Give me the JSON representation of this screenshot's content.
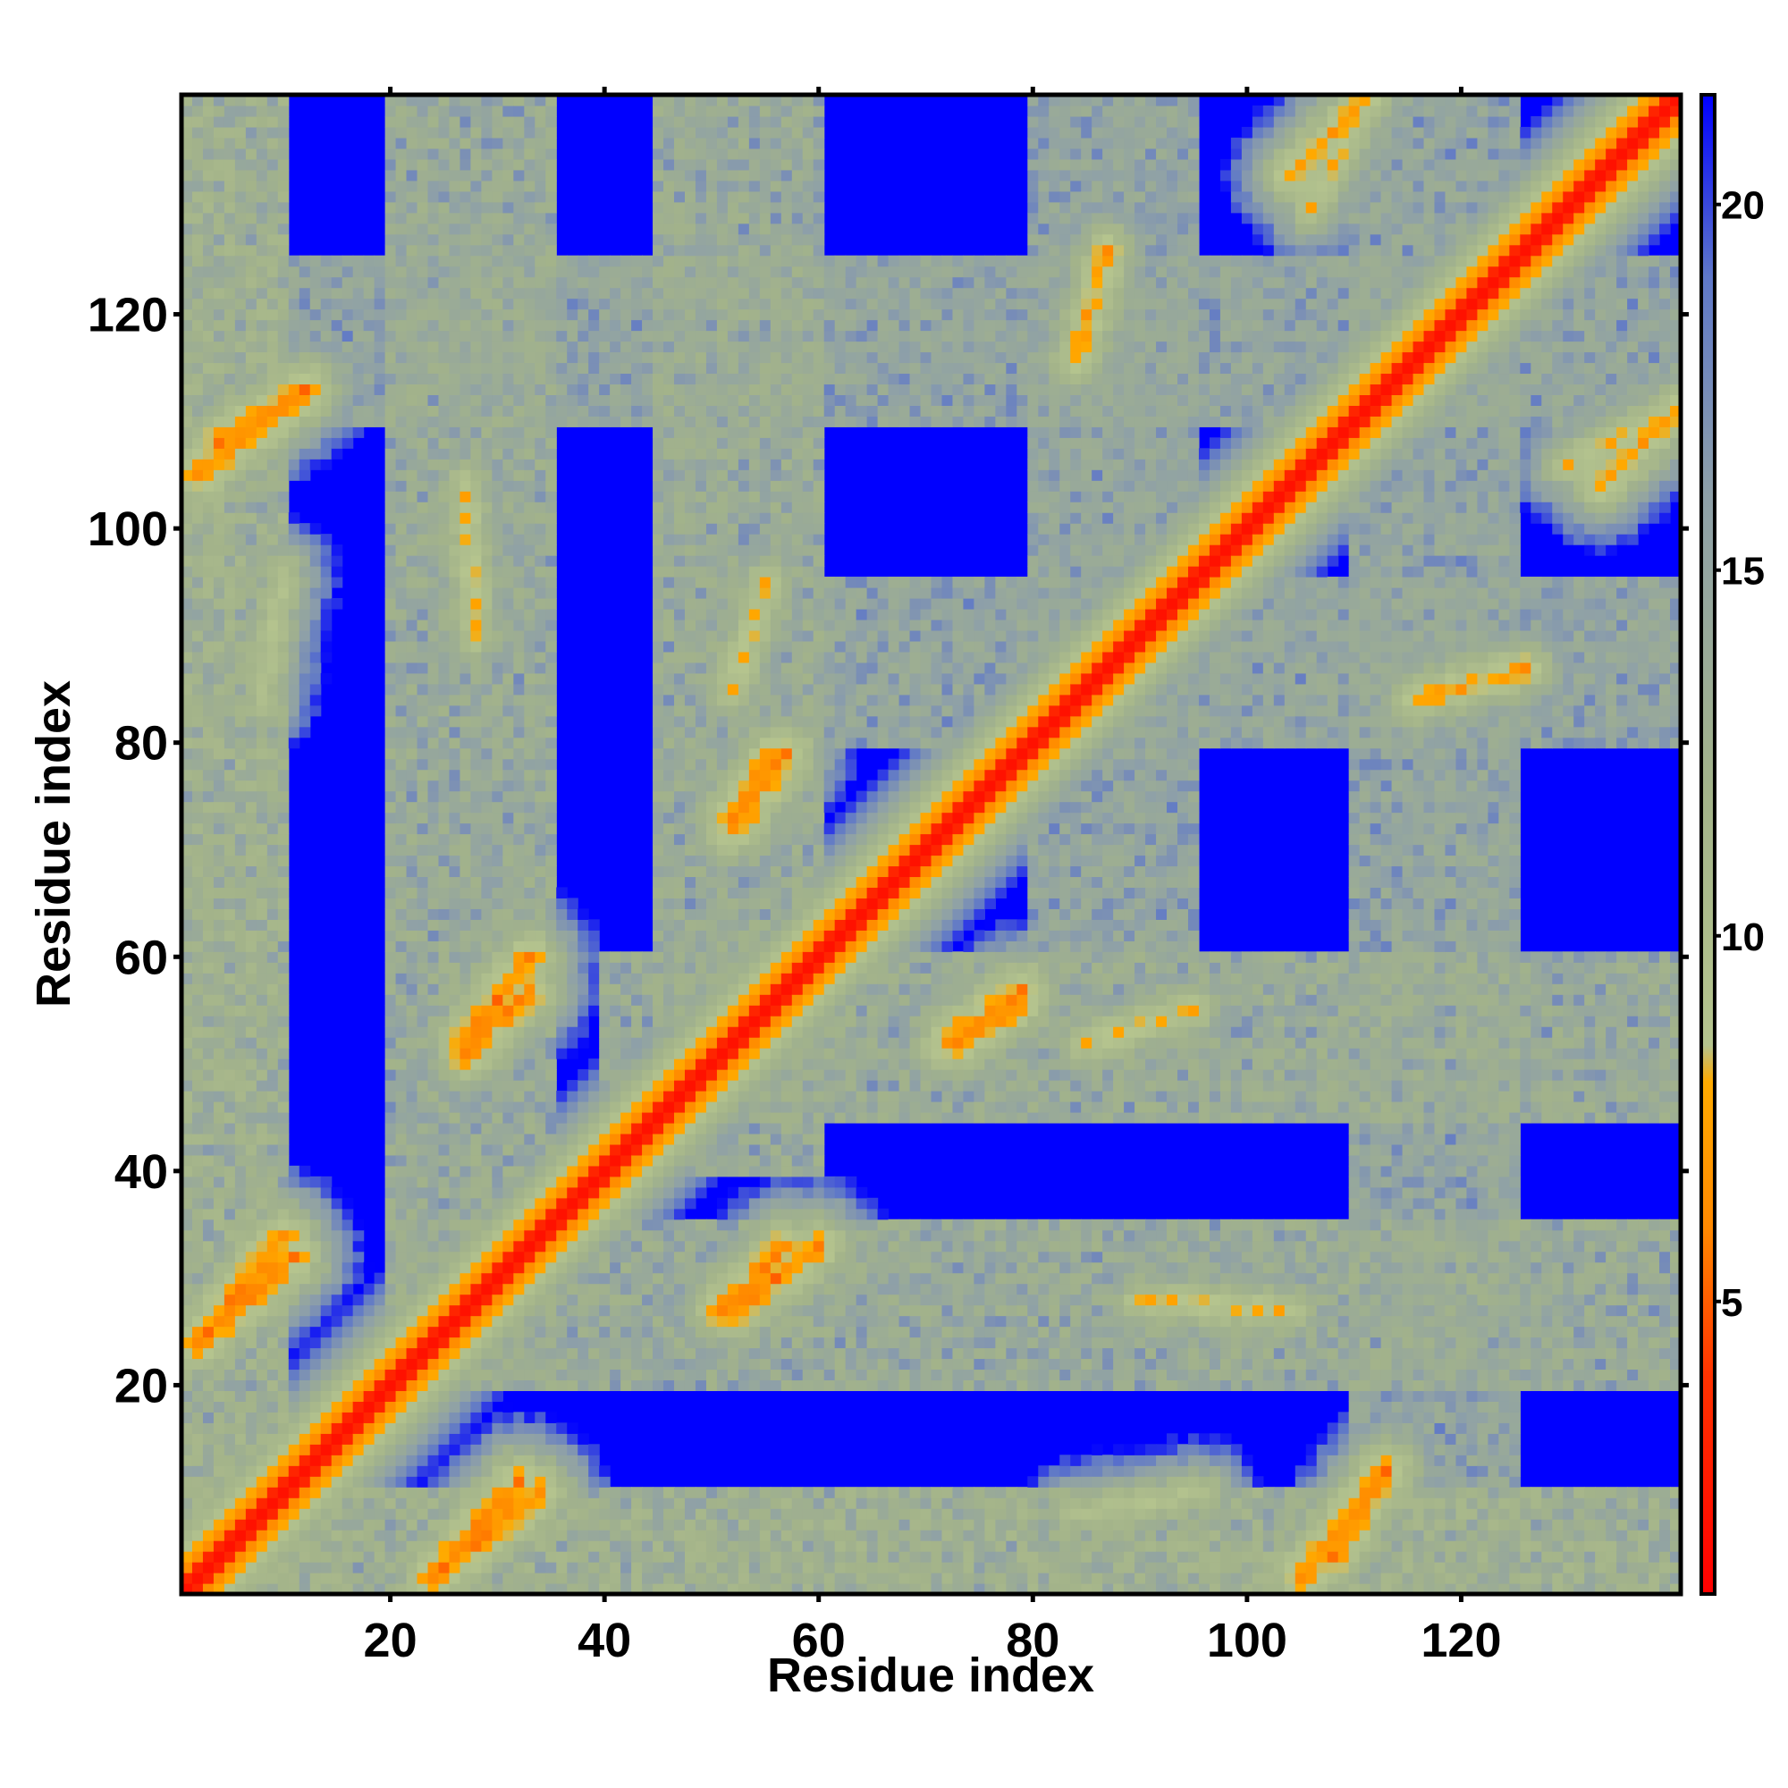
{
  "chart_data": {
    "type": "heatmap",
    "title": "",
    "xlabel": "Residue index",
    "ylabel": "Residue index",
    "n_residues": 140,
    "xlim": [
      1,
      140
    ],
    "ylim": [
      1,
      140
    ],
    "x_ticks": [
      20,
      40,
      60,
      80,
      100,
      120
    ],
    "y_ticks": [
      20,
      40,
      60,
      80,
      100,
      120
    ],
    "x_tick_labels": [
      "20",
      "40",
      "60",
      "80",
      "100",
      "120"
    ],
    "y_tick_labels": [
      "20",
      "40",
      "60",
      "80",
      "100",
      "120"
    ],
    "colorbar": {
      "range": [
        1,
        21.5
      ],
      "ticks": [
        5,
        10,
        15,
        20
      ],
      "tick_labels": [
        "5",
        "10",
        "15",
        "20"
      ],
      "colors": [
        {
          "value": 1,
          "color": "#ff0000"
        },
        {
          "value": 4,
          "color": "#ff3300"
        },
        {
          "value": 6,
          "color": "#ff8800"
        },
        {
          "value": 8,
          "color": "#ffaa00"
        },
        {
          "value": 8.5,
          "color": "#b5c48e"
        },
        {
          "value": 12,
          "color": "#a3b38a"
        },
        {
          "value": 16,
          "color": "#8ea0a8"
        },
        {
          "value": 19,
          "color": "#5f78c8"
        },
        {
          "value": 21.5,
          "color": "#0000ff"
        }
      ]
    },
    "contact_bands": [
      {
        "p": [
          4,
          108
        ],
        "q": [
          12,
          113
        ],
        "value": 6
      },
      {
        "p": [
          2,
          24
        ],
        "q": [
          10,
          34
        ],
        "value": 6
      },
      {
        "p": [
          24,
          2
        ],
        "q": [
          32,
          11
        ],
        "value": 6
      },
      {
        "p": [
          105,
          2
        ],
        "q": [
          113,
          12
        ],
        "value": 6
      },
      {
        "p": [
          52,
          27
        ],
        "q": [
          60,
          33
        ],
        "value": 6
      },
      {
        "p": [
          27,
          51
        ],
        "q": [
          33,
          57
        ],
        "value": 6
      },
      {
        "p": [
          52,
          72
        ],
        "q": [
          57,
          79
        ],
        "value": 6
      },
      {
        "p": [
          73,
          52
        ],
        "q": [
          79,
          56
        ],
        "value": 6
      },
      {
        "p": [
          116,
          84
        ],
        "q": [
          126,
          87
        ],
        "value": 7
      },
      {
        "p": [
          133,
          104
        ],
        "q": [
          140,
          111
        ],
        "value": 7
      },
      {
        "p": [
          85,
          52
        ],
        "q": [
          95,
          55
        ],
        "value": 8
      },
      {
        "p": [
          90,
          28
        ],
        "q": [
          104,
          27
        ],
        "value": 8
      },
      {
        "p": [
          106,
          130
        ],
        "q": [
          110,
          138
        ],
        "value": 8
      },
      {
        "p": [
          8,
          84
        ],
        "q": [
          10,
          96
        ],
        "value": 9
      }
    ],
    "domain_regions": [
      {
        "x": [
          1,
          140
        ],
        "y": [
          1,
          10
        ],
        "value": 14
      },
      {
        "x": [
          1,
          10
        ],
        "y": [
          1,
          140
        ],
        "value": 14
      },
      {
        "x": [
          20,
          35
        ],
        "y": [
          20,
          140
        ],
        "value": 15
      },
      {
        "x": [
          20,
          140
        ],
        "y": [
          20,
          35
        ],
        "value": 15
      },
      {
        "x": [
          45,
          60
        ],
        "y": [
          40,
          140
        ],
        "value": 15
      },
      {
        "x": [
          40,
          140
        ],
        "y": [
          45,
          60
        ],
        "value": 15
      },
      {
        "x": [
          80,
          95
        ],
        "y": [
          60,
          140
        ],
        "value": 16
      },
      {
        "x": [
          60,
          140
        ],
        "y": [
          80,
          95
        ],
        "value": 16
      },
      {
        "x": [
          110,
          125
        ],
        "y": [
          1,
          140
        ],
        "value": 16
      },
      {
        "x": [
          1,
          140
        ],
        "y": [
          110,
          125
        ],
        "value": 16
      }
    ]
  }
}
